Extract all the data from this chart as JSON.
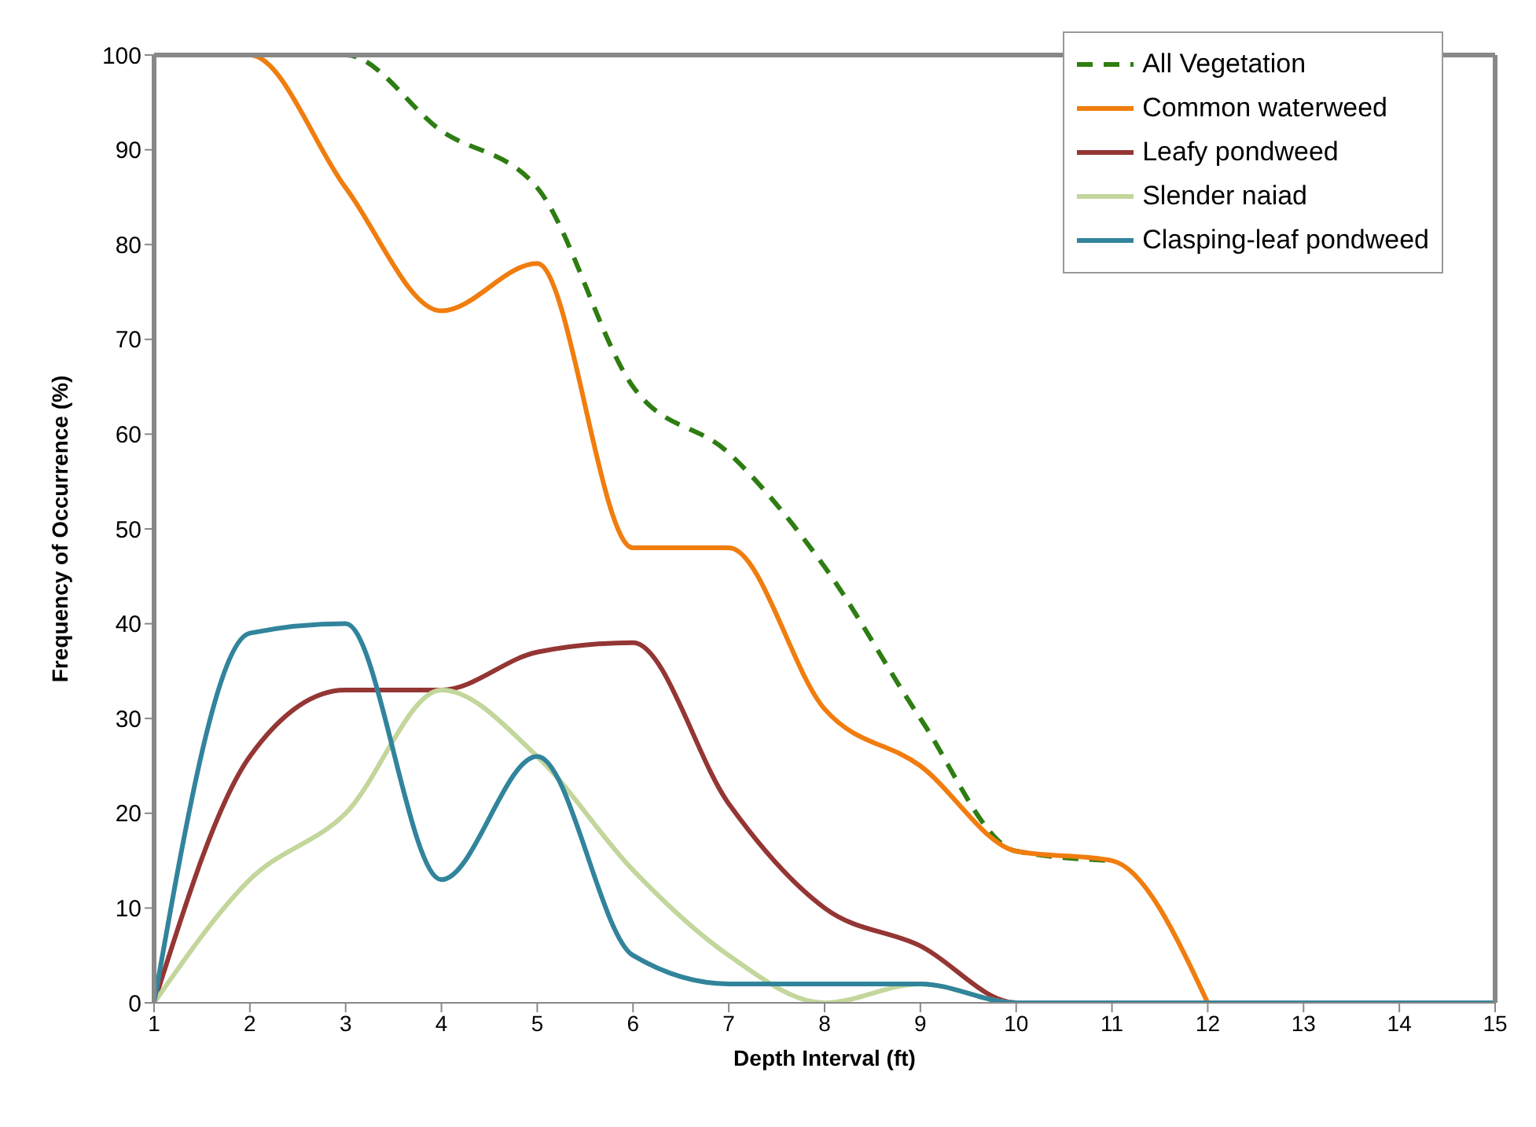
{
  "chart_data": {
    "type": "line",
    "xlabel": "Depth Interval (ft)",
    "ylabel": "Frequency of Occurrence (%)",
    "x": [
      1,
      2,
      3,
      4,
      5,
      6,
      7,
      8,
      9,
      10,
      11,
      12,
      13,
      14,
      15
    ],
    "xlim": [
      1,
      15
    ],
    "xticks": [
      1,
      2,
      3,
      4,
      5,
      6,
      7,
      8,
      9,
      10,
      11,
      12,
      13,
      14,
      15
    ],
    "ylim": [
      0,
      100
    ],
    "yticks": [
      0,
      10,
      20,
      30,
      40,
      50,
      60,
      70,
      80,
      90,
      100
    ],
    "grid": false,
    "legend": "top right",
    "marker": "none",
    "series": [
      {
        "name": "All Vegetation",
        "color": "#2e7d12",
        "line_style": "dashed",
        "values": [
          100,
          100,
          100,
          92,
          86,
          65,
          58,
          46,
          30,
          16,
          15,
          null,
          null,
          null,
          null
        ]
      },
      {
        "name": "Common waterweed",
        "color": "#f07d0e",
        "values": [
          100,
          100,
          86,
          73,
          78,
          48,
          48,
          31,
          25,
          16,
          15,
          0,
          null,
          null,
          null
        ]
      },
      {
        "name": "Leafy pondweed",
        "color": "#943634",
        "values": [
          0,
          26,
          33,
          33,
          37,
          38,
          21,
          10,
          6,
          0,
          0,
          null,
          null,
          null,
          null
        ]
      },
      {
        "name": "Slender naiad",
        "color": "#c3d69b",
        "values": [
          0,
          13,
          20,
          33,
          26,
          14,
          5,
          0,
          2,
          0,
          0,
          null,
          null,
          null,
          null
        ]
      },
      {
        "name": "Clasping-leaf pondweed",
        "color": "#31849b",
        "values": [
          0,
          39,
          40,
          13,
          26,
          5,
          2,
          2,
          2,
          0,
          0,
          0,
          0,
          0,
          0
        ]
      }
    ]
  }
}
